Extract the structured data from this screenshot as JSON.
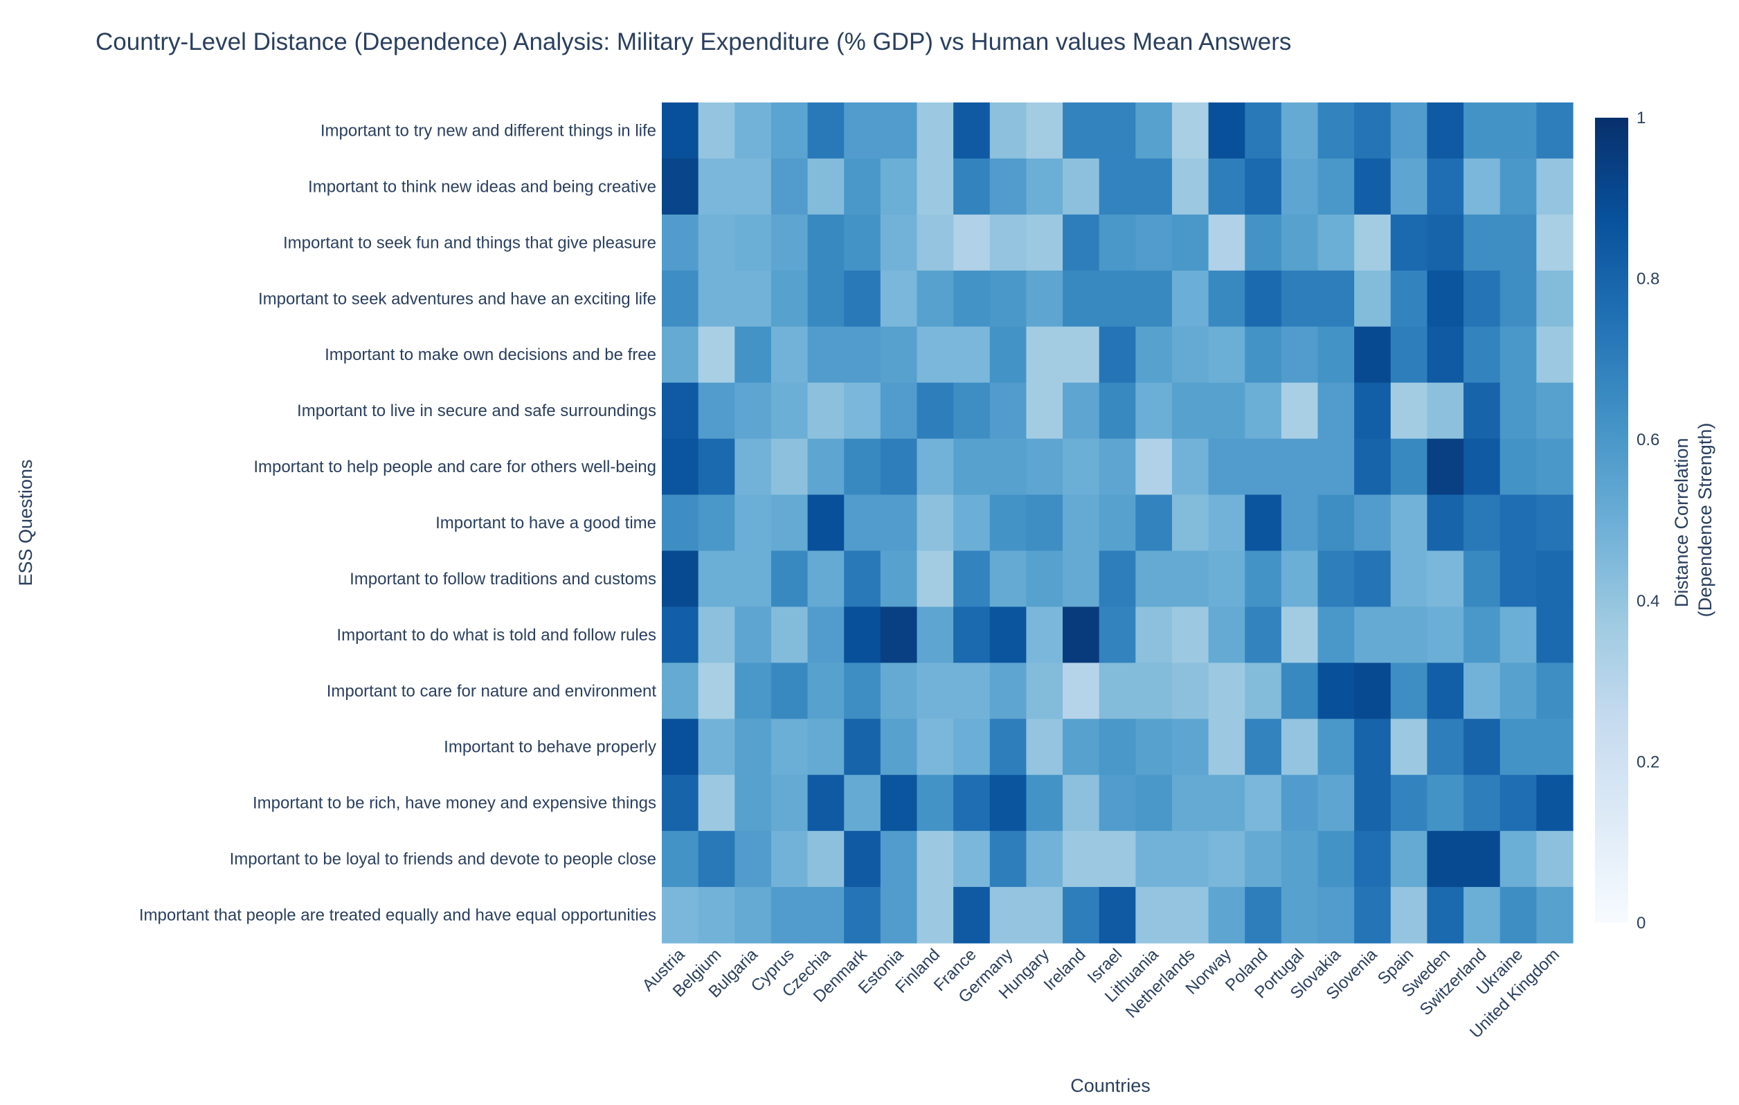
{
  "chart_data": {
    "type": "heatmap",
    "title": "Country-Level Distance (Dependence) Analysis: Military Expenditure (% GDP) vs Human values Mean Answers",
    "xlabel": "Countries",
    "ylabel": "ESS Questions",
    "colorbar_title": [
      "Distance Correlation",
      "(Dependence Strength)"
    ],
    "colorbar_range": [
      0,
      1
    ],
    "colorbar_ticks": [
      "0",
      "0.2",
      "0.4",
      "0.6",
      "0.8",
      "1"
    ],
    "colorscale": "Blues",
    "x": [
      "Austria",
      "Belgium",
      "Bulgaria",
      "Cyprus",
      "Czechia",
      "Denmark",
      "Estonia",
      "Finland",
      "France",
      "Germany",
      "Hungary",
      "Ireland",
      "Israel",
      "Lithuania",
      "Netherlands",
      "Norway",
      "Poland",
      "Portugal",
      "Slovakia",
      "Slovenia",
      "Spain",
      "Sweden",
      "Switzerland",
      "Ukraine",
      "United Kingdom"
    ],
    "y": [
      "Important to try new and different things in life",
      "Important to think new ideas and being creative",
      "Important to seek fun and things that give pleasure",
      "Important to seek adventures and have an exciting life",
      "Important to make own decisions and be free",
      "Important to live in secure and safe surroundings",
      "Important to help people and care for others well-being",
      "Important to have a good time",
      "Important to follow traditions and customs",
      "Important to do what is told and follow rules",
      "Important to care for nature and environment",
      "Important to behave properly",
      "Important to be rich, have money and expensive things",
      "Important to be loyal to friends and devote to people close",
      "Important that people are treated equally and have equal opportunities"
    ],
    "z": [
      [
        0.88,
        0.4,
        0.48,
        0.55,
        0.72,
        0.58,
        0.58,
        0.38,
        0.84,
        0.42,
        0.36,
        0.68,
        0.68,
        0.56,
        0.34,
        0.88,
        0.72,
        0.52,
        0.68,
        0.74,
        0.58,
        0.84,
        0.62,
        0.62,
        0.7
      ],
      [
        0.92,
        0.46,
        0.46,
        0.58,
        0.44,
        0.6,
        0.5,
        0.38,
        0.68,
        0.58,
        0.5,
        0.42,
        0.68,
        0.68,
        0.38,
        0.7,
        0.78,
        0.54,
        0.6,
        0.82,
        0.54,
        0.76,
        0.46,
        0.6,
        0.4
      ],
      [
        0.58,
        0.48,
        0.5,
        0.54,
        0.66,
        0.62,
        0.48,
        0.4,
        0.32,
        0.4,
        0.38,
        0.7,
        0.6,
        0.58,
        0.6,
        0.32,
        0.62,
        0.56,
        0.5,
        0.36,
        0.78,
        0.8,
        0.64,
        0.64,
        0.34
      ],
      [
        0.64,
        0.48,
        0.48,
        0.56,
        0.66,
        0.72,
        0.46,
        0.56,
        0.62,
        0.6,
        0.54,
        0.66,
        0.66,
        0.66,
        0.5,
        0.66,
        0.78,
        0.7,
        0.7,
        0.44,
        0.68,
        0.86,
        0.74,
        0.64,
        0.44
      ],
      [
        0.52,
        0.34,
        0.62,
        0.48,
        0.58,
        0.58,
        0.56,
        0.46,
        0.46,
        0.62,
        0.36,
        0.36,
        0.74,
        0.56,
        0.52,
        0.5,
        0.62,
        0.58,
        0.62,
        0.9,
        0.7,
        0.84,
        0.68,
        0.6,
        0.38
      ],
      [
        0.84,
        0.58,
        0.54,
        0.5,
        0.42,
        0.46,
        0.58,
        0.7,
        0.64,
        0.58,
        0.36,
        0.54,
        0.66,
        0.5,
        0.56,
        0.56,
        0.5,
        0.34,
        0.58,
        0.82,
        0.36,
        0.42,
        0.8,
        0.6,
        0.56
      ],
      [
        0.86,
        0.78,
        0.48,
        0.42,
        0.54,
        0.66,
        0.7,
        0.48,
        0.56,
        0.56,
        0.54,
        0.5,
        0.54,
        0.32,
        0.48,
        0.58,
        0.58,
        0.58,
        0.58,
        0.8,
        0.66,
        0.94,
        0.84,
        0.62,
        0.6
      ],
      [
        0.64,
        0.6,
        0.5,
        0.52,
        0.88,
        0.58,
        0.58,
        0.42,
        0.5,
        0.62,
        0.64,
        0.52,
        0.56,
        0.68,
        0.44,
        0.48,
        0.86,
        0.58,
        0.64,
        0.58,
        0.48,
        0.8,
        0.72,
        0.76,
        0.74
      ],
      [
        0.9,
        0.5,
        0.5,
        0.66,
        0.52,
        0.72,
        0.56,
        0.36,
        0.68,
        0.52,
        0.56,
        0.52,
        0.7,
        0.52,
        0.52,
        0.5,
        0.62,
        0.5,
        0.7,
        0.74,
        0.48,
        0.46,
        0.66,
        0.76,
        0.78
      ],
      [
        0.82,
        0.42,
        0.54,
        0.44,
        0.58,
        0.88,
        0.94,
        0.54,
        0.78,
        0.86,
        0.46,
        0.96,
        0.68,
        0.42,
        0.38,
        0.52,
        0.68,
        0.36,
        0.6,
        0.52,
        0.52,
        0.5,
        0.6,
        0.5,
        0.78
      ],
      [
        0.52,
        0.34,
        0.6,
        0.66,
        0.56,
        0.64,
        0.52,
        0.48,
        0.48,
        0.54,
        0.44,
        0.3,
        0.44,
        0.44,
        0.42,
        0.38,
        0.44,
        0.66,
        0.88,
        0.9,
        0.64,
        0.82,
        0.48,
        0.56,
        0.64
      ],
      [
        0.88,
        0.48,
        0.56,
        0.5,
        0.52,
        0.8,
        0.56,
        0.46,
        0.5,
        0.7,
        0.4,
        0.56,
        0.6,
        0.56,
        0.54,
        0.38,
        0.68,
        0.4,
        0.6,
        0.8,
        0.38,
        0.7,
        0.8,
        0.62,
        0.62
      ],
      [
        0.8,
        0.38,
        0.56,
        0.52,
        0.84,
        0.52,
        0.86,
        0.62,
        0.76,
        0.86,
        0.62,
        0.42,
        0.58,
        0.6,
        0.52,
        0.52,
        0.46,
        0.58,
        0.54,
        0.8,
        0.68,
        0.62,
        0.7,
        0.76,
        0.86
      ],
      [
        0.62,
        0.72,
        0.58,
        0.48,
        0.42,
        0.84,
        0.58,
        0.38,
        0.46,
        0.7,
        0.48,
        0.38,
        0.38,
        0.48,
        0.48,
        0.46,
        0.52,
        0.56,
        0.62,
        0.76,
        0.52,
        0.9,
        0.9,
        0.5,
        0.42
      ],
      [
        0.46,
        0.48,
        0.52,
        0.58,
        0.58,
        0.74,
        0.58,
        0.38,
        0.84,
        0.4,
        0.4,
        0.7,
        0.84,
        0.4,
        0.4,
        0.54,
        0.7,
        0.56,
        0.58,
        0.74,
        0.4,
        0.78,
        0.5,
        0.64,
        0.56
      ]
    ]
  }
}
